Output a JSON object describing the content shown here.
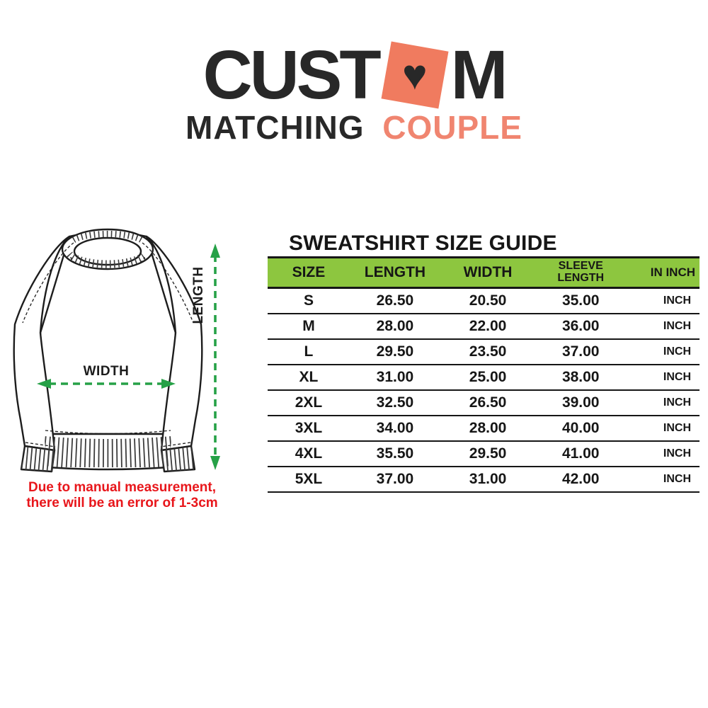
{
  "logo": {
    "word_start": "CUST",
    "word_end": "M",
    "heart_glyph": "♥",
    "subtitle_word1": "MATCHING",
    "subtitle_word2": "COUPLE"
  },
  "colors": {
    "ink": "#282828",
    "accent_coral": "#F08570",
    "coral_square": "#F07B5F",
    "table_header_green": "#8DC63F",
    "arrow_green": "#26A147",
    "warning_red": "#E8161B"
  },
  "diagram": {
    "length_label": "LENGTH",
    "width_label": "WIDTH",
    "disclaimer_line1": "Due to manual measurement,",
    "disclaimer_line2": "there will be an error of 1-3cm"
  },
  "size_guide": {
    "title": "SWEATSHIRT SIZE GUIDE",
    "columns": [
      "SIZE",
      "LENGTH",
      "WIDTH",
      "SLEEVE LENGTH",
      "IN INCH"
    ],
    "rows": [
      {
        "size": "S",
        "length": "26.50",
        "width": "20.50",
        "sleeve": "35.00",
        "unit": "INCH"
      },
      {
        "size": "M",
        "length": "28.00",
        "width": "22.00",
        "sleeve": "36.00",
        "unit": "INCH"
      },
      {
        "size": "L",
        "length": "29.50",
        "width": "23.50",
        "sleeve": "37.00",
        "unit": "INCH"
      },
      {
        "size": "XL",
        "length": "31.00",
        "width": "25.00",
        "sleeve": "38.00",
        "unit": "INCH"
      },
      {
        "size": "2XL",
        "length": "32.50",
        "width": "26.50",
        "sleeve": "39.00",
        "unit": "INCH"
      },
      {
        "size": "3XL",
        "length": "34.00",
        "width": "28.00",
        "sleeve": "40.00",
        "unit": "INCH"
      },
      {
        "size": "4XL",
        "length": "35.50",
        "width": "29.50",
        "sleeve": "41.00",
        "unit": "INCH"
      },
      {
        "size": "5XL",
        "length": "37.00",
        "width": "31.00",
        "sleeve": "42.00",
        "unit": "INCH"
      }
    ]
  },
  "chart_data": {
    "type": "table",
    "title": "SWEATSHIRT SIZE GUIDE",
    "columns": [
      "SIZE",
      "LENGTH",
      "WIDTH",
      "SLEEVE LENGTH",
      "IN INCH"
    ],
    "rows": [
      [
        "S",
        "26.50",
        "20.50",
        "35.00",
        "INCH"
      ],
      [
        "M",
        "28.00",
        "22.00",
        "36.00",
        "INCH"
      ],
      [
        "L",
        "29.50",
        "23.50",
        "37.00",
        "INCH"
      ],
      [
        "XL",
        "31.00",
        "25.00",
        "38.00",
        "INCH"
      ],
      [
        "2XL",
        "32.50",
        "26.50",
        "39.00",
        "INCH"
      ],
      [
        "3XL",
        "34.00",
        "28.00",
        "40.00",
        "INCH"
      ],
      [
        "4XL",
        "35.50",
        "29.50",
        "41.00",
        "INCH"
      ],
      [
        "5XL",
        "37.00",
        "31.00",
        "42.00",
        "INCH"
      ]
    ]
  }
}
